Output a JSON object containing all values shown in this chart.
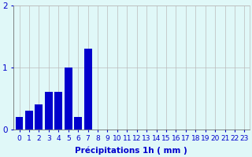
{
  "hours": [
    0,
    1,
    2,
    3,
    4,
    5,
    6,
    7,
    8,
    9,
    10,
    11,
    12,
    13,
    14,
    15,
    16,
    17,
    18,
    19,
    20,
    21,
    22,
    23
  ],
  "values": [
    0.2,
    0.3,
    0.4,
    0.6,
    0.6,
    1.0,
    0.2,
    1.3,
    0.0,
    0.0,
    0.0,
    0.0,
    0.0,
    0.0,
    0.0,
    0.0,
    0.0,
    0.0,
    0.0,
    0.0,
    0.0,
    0.0,
    0.0,
    0.0
  ],
  "bar_color": "#0000cc",
  "bg_color": "#e0f8f8",
  "grid_color": "#bbbbbb",
  "axis_color": "#0000cc",
  "xlabel": "Précipitations 1h ( mm )",
  "xlabel_color": "#0000cc",
  "ylim": [
    0,
    2.0
  ],
  "yticks": [
    0,
    1,
    2
  ],
  "tick_fontsize": 6.5,
  "label_fontsize": 7.5
}
